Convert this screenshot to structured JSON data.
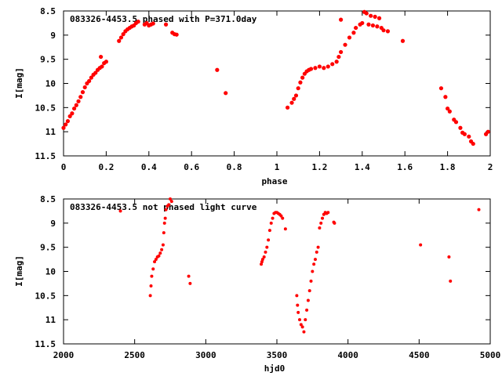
{
  "chart_data": [
    {
      "type": "scatter",
      "title": "083326-4453.5 phased with P=371.0day",
      "xlabel": "phase",
      "ylabel": "I[mag]",
      "xlim": [
        0,
        2
      ],
      "ylim": [
        8.5,
        11.5
      ],
      "y_inverted": true,
      "xticks": [
        "0",
        "0.2",
        "0.4",
        "0.6",
        "0.8",
        "1",
        "1.2",
        "1.4",
        "1.6",
        "1.8",
        "2"
      ],
      "yticks": [
        "8.5",
        "9",
        "9.5",
        "10",
        "10.5",
        "11",
        "11.5"
      ],
      "marker_color": "#ff0000",
      "series": [
        {
          "points": [
            [
              0.0,
              10.92
            ],
            [
              0.01,
              10.85
            ],
            [
              0.02,
              10.78
            ],
            [
              0.03,
              10.68
            ],
            [
              0.04,
              10.62
            ],
            [
              0.05,
              10.52
            ],
            [
              0.06,
              10.45
            ],
            [
              0.07,
              10.37
            ],
            [
              0.08,
              10.28
            ],
            [
              0.09,
              10.18
            ],
            [
              0.1,
              10.08
            ],
            [
              0.11,
              10.0
            ],
            [
              0.12,
              9.95
            ],
            [
              0.13,
              9.88
            ],
            [
              0.14,
              9.82
            ],
            [
              0.15,
              9.78
            ],
            [
              0.16,
              9.72
            ],
            [
              0.17,
              9.68
            ],
            [
              0.175,
              9.45
            ],
            [
              0.18,
              9.65
            ],
            [
              0.19,
              9.58
            ],
            [
              0.2,
              9.55
            ],
            [
              0.26,
              9.12
            ],
            [
              0.27,
              9.05
            ],
            [
              0.28,
              8.98
            ],
            [
              0.29,
              8.92
            ],
            [
              0.3,
              8.88
            ],
            [
              0.31,
              8.85
            ],
            [
              0.32,
              8.82
            ],
            [
              0.33,
              8.8
            ],
            [
              0.34,
              8.75
            ],
            [
              0.35,
              8.72
            ],
            [
              0.38,
              8.78
            ],
            [
              0.39,
              8.75
            ],
            [
              0.4,
              8.8
            ],
            [
              0.41,
              8.78
            ],
            [
              0.42,
              8.76
            ],
            [
              0.48,
              8.78
            ],
            [
              0.51,
              8.95
            ],
            [
              0.52,
              8.98
            ],
            [
              0.53,
              8.99
            ],
            [
              0.72,
              9.72
            ],
            [
              0.76,
              10.2
            ],
            [
              1.05,
              10.5
            ],
            [
              1.07,
              10.4
            ],
            [
              1.08,
              10.32
            ],
            [
              1.09,
              10.25
            ],
            [
              1.1,
              10.1
            ],
            [
              1.11,
              9.98
            ],
            [
              1.12,
              9.88
            ],
            [
              1.13,
              9.8
            ],
            [
              1.14,
              9.75
            ],
            [
              1.15,
              9.72
            ],
            [
              1.16,
              9.7
            ],
            [
              1.18,
              9.68
            ],
            [
              1.2,
              9.65
            ],
            [
              1.22,
              9.68
            ],
            [
              1.24,
              9.65
            ],
            [
              1.26,
              9.6
            ],
            [
              1.28,
              9.55
            ],
            [
              1.29,
              9.45
            ],
            [
              1.3,
              9.35
            ],
            [
              1.3,
              8.68
            ],
            [
              1.32,
              9.2
            ],
            [
              1.34,
              9.05
            ],
            [
              1.36,
              8.95
            ],
            [
              1.37,
              8.85
            ],
            [
              1.39,
              8.78
            ],
            [
              1.4,
              8.75
            ],
            [
              1.41,
              8.52
            ],
            [
              1.42,
              8.55
            ],
            [
              1.43,
              8.78
            ],
            [
              1.44,
              8.6
            ],
            [
              1.45,
              8.8
            ],
            [
              1.46,
              8.62
            ],
            [
              1.47,
              8.82
            ],
            [
              1.48,
              8.65
            ],
            [
              1.49,
              8.85
            ],
            [
              1.5,
              8.9
            ],
            [
              1.52,
              8.92
            ],
            [
              1.59,
              9.12
            ],
            [
              1.77,
              10.1
            ],
            [
              1.79,
              10.28
            ],
            [
              1.8,
              10.52
            ],
            [
              1.81,
              10.58
            ],
            [
              1.83,
              10.75
            ],
            [
              1.84,
              10.8
            ],
            [
              1.86,
              10.92
            ],
            [
              1.87,
              11.02
            ],
            [
              1.88,
              11.05
            ],
            [
              1.9,
              11.1
            ],
            [
              1.91,
              11.2
            ],
            [
              1.92,
              11.25
            ],
            [
              1.98,
              11.05
            ],
            [
              1.99,
              11.0
            ]
          ]
        }
      ]
    },
    {
      "type": "scatter",
      "title": "083326-4453.5 not phased light curve",
      "xlabel": "hjd0",
      "ylabel": "I[mag]",
      "xlim": [
        2000,
        5000
      ],
      "ylim": [
        8.5,
        11.5
      ],
      "y_inverted": true,
      "xticks": [
        "2000",
        "2500",
        "3000",
        "3500",
        "4000",
        "4500",
        "5000"
      ],
      "yticks": [
        "8.5",
        "9",
        "9.5",
        "10",
        "10.5",
        "11",
        "11.5"
      ],
      "marker_color": "#ff0000",
      "series": [
        {
          "points": [
            [
              2400,
              8.75
            ],
            [
              2610,
              10.5
            ],
            [
              2615,
              10.3
            ],
            [
              2620,
              10.1
            ],
            [
              2630,
              9.95
            ],
            [
              2640,
              9.8
            ],
            [
              2650,
              9.75
            ],
            [
              2660,
              9.7
            ],
            [
              2670,
              9.68
            ],
            [
              2680,
              9.62
            ],
            [
              2690,
              9.55
            ],
            [
              2700,
              9.45
            ],
            [
              2705,
              9.2
            ],
            [
              2710,
              9.0
            ],
            [
              2715,
              8.9
            ],
            [
              2720,
              8.72
            ],
            [
              2730,
              8.65
            ],
            [
              2740,
              8.62
            ],
            [
              2750,
              8.5
            ],
            [
              2760,
              8.55
            ],
            [
              2880,
              10.1
            ],
            [
              2890,
              10.25
            ],
            [
              3390,
              9.85
            ],
            [
              3395,
              9.8
            ],
            [
              3400,
              9.75
            ],
            [
              3410,
              9.7
            ],
            [
              3420,
              9.6
            ],
            [
              3430,
              9.5
            ],
            [
              3440,
              9.35
            ],
            [
              3450,
              9.15
            ],
            [
              3460,
              9.0
            ],
            [
              3470,
              8.9
            ],
            [
              3480,
              8.8
            ],
            [
              3490,
              8.78
            ],
            [
              3500,
              8.78
            ],
            [
              3510,
              8.8
            ],
            [
              3520,
              8.82
            ],
            [
              3530,
              8.85
            ],
            [
              3540,
              8.9
            ],
            [
              3560,
              9.12
            ],
            [
              3640,
              10.5
            ],
            [
              3645,
              10.7
            ],
            [
              3650,
              10.85
            ],
            [
              3660,
              11.0
            ],
            [
              3670,
              11.1
            ],
            [
              3680,
              11.15
            ],
            [
              3690,
              11.25
            ],
            [
              3700,
              11.0
            ],
            [
              3710,
              10.8
            ],
            [
              3720,
              10.6
            ],
            [
              3730,
              10.4
            ],
            [
              3740,
              10.2
            ],
            [
              3750,
              10.0
            ],
            [
              3760,
              9.85
            ],
            [
              3770,
              9.75
            ],
            [
              3780,
              9.6
            ],
            [
              3790,
              9.5
            ],
            [
              3800,
              9.1
            ],
            [
              3810,
              9.0
            ],
            [
              3820,
              8.9
            ],
            [
              3830,
              8.82
            ],
            [
              3840,
              8.78
            ],
            [
              3850,
              8.8
            ],
            [
              3860,
              8.78
            ],
            [
              3900,
              8.98
            ],
            [
              3905,
              9.0
            ],
            [
              4510,
              9.45
            ],
            [
              4710,
              9.7
            ],
            [
              4720,
              10.2
            ],
            [
              4920,
              8.72
            ]
          ]
        }
      ]
    }
  ]
}
